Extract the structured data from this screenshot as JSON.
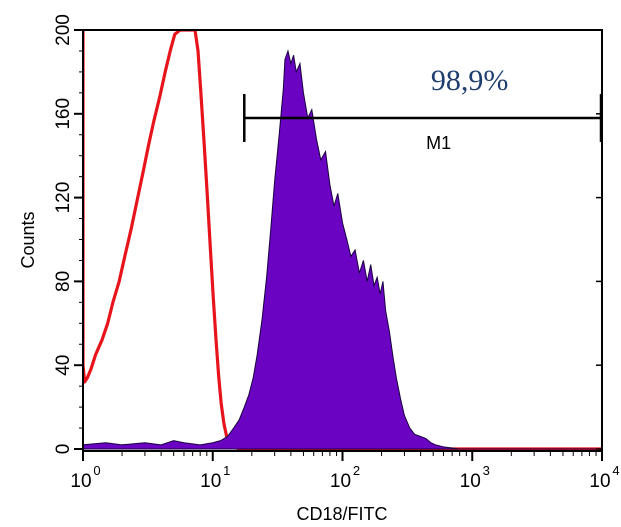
{
  "chart_data": {
    "type": "histogram",
    "xlabel": "CD18/FITC",
    "ylabel": "Counts",
    "x_scale": "log",
    "xlim": [
      1,
      10000
    ],
    "ylim": [
      0,
      200
    ],
    "x_ticks": [
      {
        "value": 1,
        "base": "10",
        "exp": "0"
      },
      {
        "value": 10,
        "base": "10",
        "exp": "1"
      },
      {
        "value": 100,
        "base": "10",
        "exp": "2"
      },
      {
        "value": 1000,
        "base": "10",
        "exp": "3"
      },
      {
        "value": 10000,
        "base": "10",
        "exp": "4"
      }
    ],
    "y_ticks": [
      "0",
      "40",
      "80",
      "120",
      "160",
      "200"
    ],
    "series": [
      {
        "role": "control",
        "color": "#e8141c",
        "fill": false,
        "points": [
          [
            1.0,
            200
          ],
          [
            1.0,
            40
          ],
          [
            1.03,
            32
          ],
          [
            1.08,
            34
          ],
          [
            1.15,
            38
          ],
          [
            1.25,
            45
          ],
          [
            1.4,
            52
          ],
          [
            1.55,
            60
          ],
          [
            1.7,
            70
          ],
          [
            1.9,
            80
          ],
          [
            2.1,
            92
          ],
          [
            2.35,
            105
          ],
          [
            2.6,
            118
          ],
          [
            2.9,
            132
          ],
          [
            3.2,
            145
          ],
          [
            3.5,
            156
          ],
          [
            3.9,
            168
          ],
          [
            4.3,
            180
          ],
          [
            4.7,
            190
          ],
          [
            5.1,
            198
          ],
          [
            5.6,
            200
          ],
          [
            6.2,
            200
          ],
          [
            6.8,
            200
          ],
          [
            7.3,
            200
          ],
          [
            7.7,
            190
          ],
          [
            8.1,
            170
          ],
          [
            8.6,
            145
          ],
          [
            9.1,
            120
          ],
          [
            9.6,
            95
          ],
          [
            10.1,
            72
          ],
          [
            10.6,
            52
          ],
          [
            11.1,
            35
          ],
          [
            11.6,
            22
          ],
          [
            12.2,
            12
          ],
          [
            12.8,
            6
          ],
          [
            13.5,
            3
          ],
          [
            14.5,
            1
          ],
          [
            16,
            0
          ],
          [
            100,
            0
          ],
          [
            10000,
            0
          ]
        ]
      },
      {
        "role": "stained",
        "color": "#6a04c2",
        "fill": true,
        "points": [
          [
            1.0,
            2
          ],
          [
            1.5,
            3
          ],
          [
            2,
            2
          ],
          [
            3,
            3
          ],
          [
            4,
            2
          ],
          [
            5,
            4
          ],
          [
            6,
            3
          ],
          [
            8,
            2
          ],
          [
            10,
            3
          ],
          [
            11.5,
            4
          ],
          [
            13,
            6
          ],
          [
            14.5,
            10
          ],
          [
            16,
            14
          ],
          [
            17.5,
            20
          ],
          [
            19,
            26
          ],
          [
            20.5,
            34
          ],
          [
            22,
            45
          ],
          [
            24,
            62
          ],
          [
            26,
            82
          ],
          [
            28,
            105
          ],
          [
            30,
            128
          ],
          [
            32.5,
            150
          ],
          [
            35,
            172
          ],
          [
            36,
            186
          ],
          [
            38,
            190
          ],
          [
            40,
            184
          ],
          [
            42,
            188
          ],
          [
            44,
            180
          ],
          [
            47,
            184
          ],
          [
            50,
            170
          ],
          [
            54,
            158
          ],
          [
            58,
            162
          ],
          [
            63,
            148
          ],
          [
            68,
            138
          ],
          [
            74,
            142
          ],
          [
            80,
            126
          ],
          [
            86,
            116
          ],
          [
            92,
            122
          ],
          [
            100,
            108
          ],
          [
            108,
            100
          ],
          [
            116,
            92
          ],
          [
            125,
            95
          ],
          [
            135,
            84
          ],
          [
            145,
            90
          ],
          [
            155,
            80
          ],
          [
            165,
            88
          ],
          [
            175,
            78
          ],
          [
            185,
            82
          ],
          [
            195,
            74
          ],
          [
            205,
            80
          ],
          [
            215,
            66
          ],
          [
            230,
            56
          ],
          [
            245,
            44
          ],
          [
            260,
            34
          ],
          [
            280,
            24
          ],
          [
            300,
            16
          ],
          [
            330,
            10
          ],
          [
            360,
            7
          ],
          [
            400,
            6
          ],
          [
            440,
            5
          ],
          [
            480,
            3
          ],
          [
            520,
            2
          ],
          [
            600,
            1
          ],
          [
            800,
            0
          ],
          [
            10000,
            0
          ]
        ]
      }
    ],
    "marker": {
      "name": "M1",
      "x_start": 17.5,
      "x_end": 10000,
      "y": 158,
      "percent_label": "98,9%"
    }
  }
}
